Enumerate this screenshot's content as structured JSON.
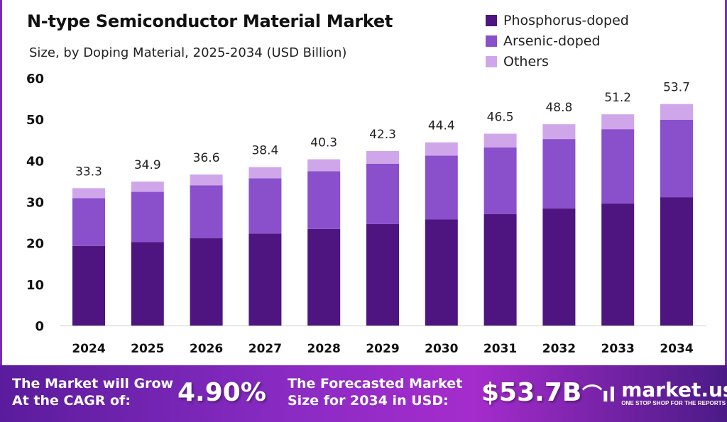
{
  "chart_data": {
    "type": "bar",
    "stacked": true,
    "title": "N-type Semiconductor Material Market",
    "subtitle": "Size, by Doping Material, 2025-2034 (USD Billion)",
    "categories": [
      "2024",
      "2025",
      "2026",
      "2027",
      "2028",
      "2029",
      "2030",
      "2031",
      "2032",
      "2033",
      "2034"
    ],
    "series": [
      {
        "name": "Phosphorus-doped",
        "color": "#4e1580",
        "values": [
          19.3,
          20.2,
          21.2,
          22.3,
          23.4,
          24.6,
          25.7,
          27.0,
          28.4,
          29.6,
          31.1
        ]
      },
      {
        "name": "Arsenic-doped",
        "color": "#8a4fcb",
        "values": [
          11.6,
          12.2,
          12.8,
          13.4,
          14.0,
          14.6,
          15.5,
          16.2,
          16.8,
          18.0,
          18.8
        ]
      },
      {
        "name": "Others",
        "color": "#d0a6ea",
        "values": [
          2.4,
          2.5,
          2.6,
          2.7,
          2.9,
          3.1,
          3.2,
          3.3,
          3.6,
          3.6,
          3.8
        ]
      }
    ],
    "totals": [
      "33.3",
      "34.9",
      "36.6",
      "38.4",
      "40.3",
      "42.3",
      "44.4",
      "46.5",
      "48.8",
      "51.2",
      "53.7"
    ],
    "yticks": [
      "0",
      "10",
      "20",
      "30",
      "40",
      "50",
      "60"
    ],
    "ylim": [
      0,
      60
    ],
    "grid": false,
    "legend_position": "top-right"
  },
  "footer": {
    "cagr_label_1": "The Market will Grow",
    "cagr_label_2": "At the CAGR of:",
    "cagr_value": "4.90%",
    "forecast_label_1": "The Forecasted Market",
    "forecast_label_2": "Size for 2034 in USD:",
    "forecast_value": "$53.7B",
    "logo_name": "market.us",
    "logo_tagline": "ONE STOP SHOP FOR THE REPORTS"
  }
}
